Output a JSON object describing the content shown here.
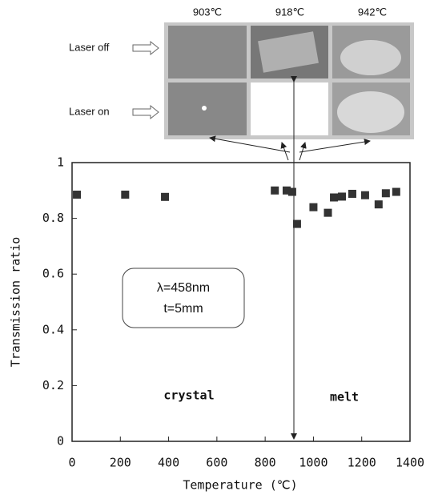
{
  "chart_data": {
    "type": "scatter",
    "xlabel": "Temperature (℃)",
    "ylabel": "Transmission ratio",
    "x": [
      20,
      220,
      385,
      840,
      889,
      912,
      932,
      1000,
      1060,
      1085,
      1118,
      1161,
      1214,
      1270,
      1300,
      1343
    ],
    "values": [
      0.885,
      0.885,
      0.877,
      0.9,
      0.9,
      0.895,
      0.78,
      0.84,
      0.82,
      0.875,
      0.878,
      0.888,
      0.883,
      0.85,
      0.89,
      0.895
    ],
    "color": "#333333",
    "xlim": [
      0,
      1400
    ],
    "ylim": [
      0,
      1
    ],
    "xticks": [
      0,
      200,
      400,
      600,
      800,
      1000,
      1200,
      1400
    ],
    "yticks": [
      0,
      0.2,
      0.4,
      0.6,
      0.8,
      1
    ],
    "annotations": [
      "crystal",
      "melt",
      "λ=458nm",
      "t=5mm"
    ],
    "inset": {
      "column_labels": [
        "903℃",
        "918℃",
        "942℃"
      ],
      "row_labels": [
        "Laser off",
        "Laser on"
      ]
    }
  }
}
